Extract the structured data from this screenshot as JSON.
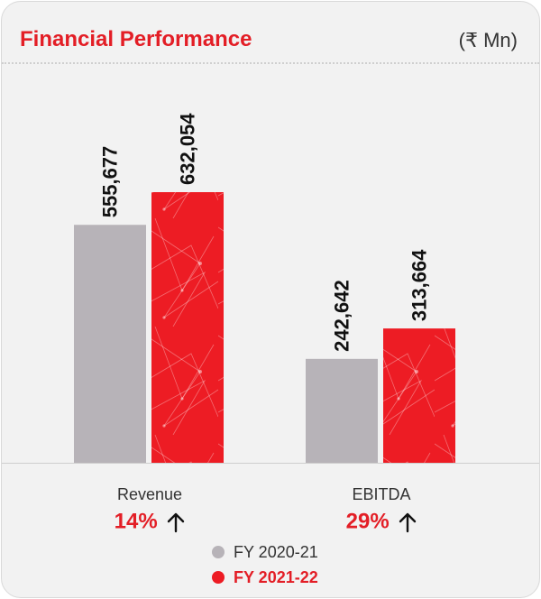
{
  "header": {
    "title": "Financial Performance",
    "unit": "(₹ Mn)"
  },
  "colors": {
    "accent": "#e31e26",
    "series1": "#b7b3b8",
    "series2": "#ed1c24",
    "text": "#333333"
  },
  "chart_data": {
    "type": "bar",
    "title": "Financial Performance",
    "unit": "(₹ Mn)",
    "categories": [
      "Revenue",
      "EBITDA"
    ],
    "series": [
      {
        "name": "FY 2020-21",
        "values": [
          555677,
          242642
        ],
        "labels": [
          "555,677",
          "242,642"
        ]
      },
      {
        "name": "FY 2021-22",
        "values": [
          632054,
          313664
        ],
        "labels": [
          "632,054",
          "313,664"
        ]
      }
    ],
    "growth": [
      "14%",
      "29%"
    ],
    "growth_icon": "arrow-up-icon",
    "legend_position": "bottom",
    "grid": false
  }
}
